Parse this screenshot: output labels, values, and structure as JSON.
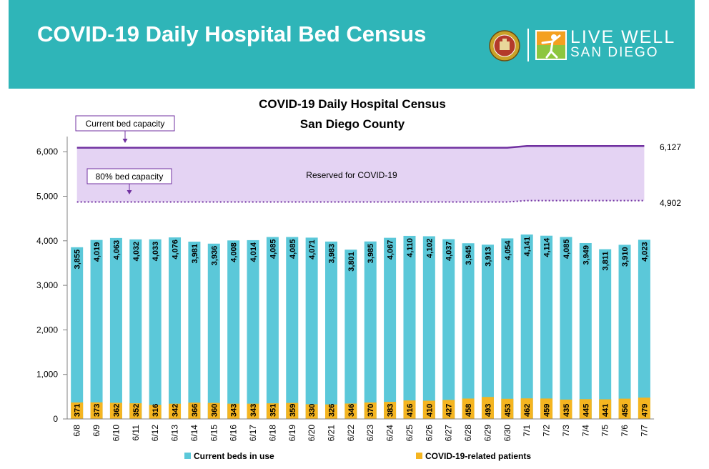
{
  "header": {
    "title": "COVID-19 Daily Hospital Bed Census",
    "logo_line1": "LIVE WELL",
    "logo_line2": "SAN DIEGO"
  },
  "colors": {
    "banner": "#2fb5b8",
    "beds": "#5bc8d9",
    "covid": "#f5b520",
    "capacity_line": "#7030a0",
    "reserved_fill": "#e4d3f3"
  },
  "chart_data": {
    "type": "bar",
    "title_line1": "COVID-19 Daily Hospital Census",
    "title_line2": "San Diego County",
    "ylim": [
      0,
      6500
    ],
    "yticks": [
      0,
      1000,
      2000,
      3000,
      4000,
      5000,
      6000
    ],
    "ytick_labels": [
      "0",
      "1,000",
      "2,000",
      "3,000",
      "4,000",
      "5,000",
      "6,000"
    ],
    "categories": [
      "6/8",
      "6/9",
      "6/10",
      "6/11",
      "6/12",
      "6/13",
      "6/14",
      "6/15",
      "6/16",
      "6/17",
      "6/18",
      "6/19",
      "6/20",
      "6/21",
      "6/22",
      "6/23",
      "6/24",
      "6/25",
      "6/26",
      "6/27",
      "6/28",
      "6/29",
      "6/30",
      "7/1",
      "7/2",
      "7/3",
      "7/4",
      "7/5",
      "7/6",
      "7/7"
    ],
    "series": [
      {
        "name": "Current beds in use",
        "values": [
          3855,
          4019,
          4063,
          4032,
          4033,
          4076,
          3981,
          3936,
          4008,
          4014,
          4085,
          4085,
          4071,
          3983,
          3801,
          3985,
          4067,
          4110,
          4102,
          4037,
          3945,
          3913,
          4054,
          4141,
          4114,
          4085,
          3949,
          3811,
          3910,
          4023
        ],
        "labels": [
          "3,855",
          "4,019",
          "4,063",
          "4,032",
          "4,033",
          "4,076",
          "3,981",
          "3,936",
          "4,008",
          "4,014",
          "4,085",
          "4,085",
          "4,071",
          "3,983",
          "3,801",
          "3,985",
          "4,067",
          "4,110",
          "4,102",
          "4,037",
          "3,945",
          "3,913",
          "4,054",
          "4,141",
          "4,114",
          "4,085",
          "3,949",
          "3,811",
          "3,910",
          "4,023"
        ]
      },
      {
        "name": "COVID-19-related patients",
        "values": [
          371,
          373,
          362,
          352,
          316,
          342,
          366,
          360,
          343,
          343,
          351,
          359,
          330,
          326,
          346,
          370,
          383,
          416,
          410,
          427,
          458,
          493,
          453,
          462,
          459,
          435,
          445,
          441,
          456,
          479
        ]
      }
    ],
    "capacity_line": {
      "label": "Current bed capacity",
      "values": [
        6090,
        6090,
        6090,
        6090,
        6090,
        6090,
        6090,
        6090,
        6090,
        6090,
        6090,
        6090,
        6090,
        6090,
        6090,
        6090,
        6090,
        6090,
        6090,
        6090,
        6090,
        6090,
        6090,
        6127,
        6127,
        6127,
        6127,
        6127,
        6127,
        6127
      ],
      "end_label": "6,127"
    },
    "eighty_line": {
      "label": "80% bed capacity",
      "values": [
        4872,
        4872,
        4872,
        4872,
        4872,
        4872,
        4872,
        4872,
        4872,
        4872,
        4872,
        4872,
        4872,
        4872,
        4872,
        4872,
        4872,
        4872,
        4872,
        4872,
        4872,
        4872,
        4872,
        4902,
        4902,
        4902,
        4902,
        4902,
        4902,
        4902
      ],
      "end_label": "4,902"
    },
    "reserved_label": "Reserved for COVID-19",
    "legend_position": "bottom"
  }
}
